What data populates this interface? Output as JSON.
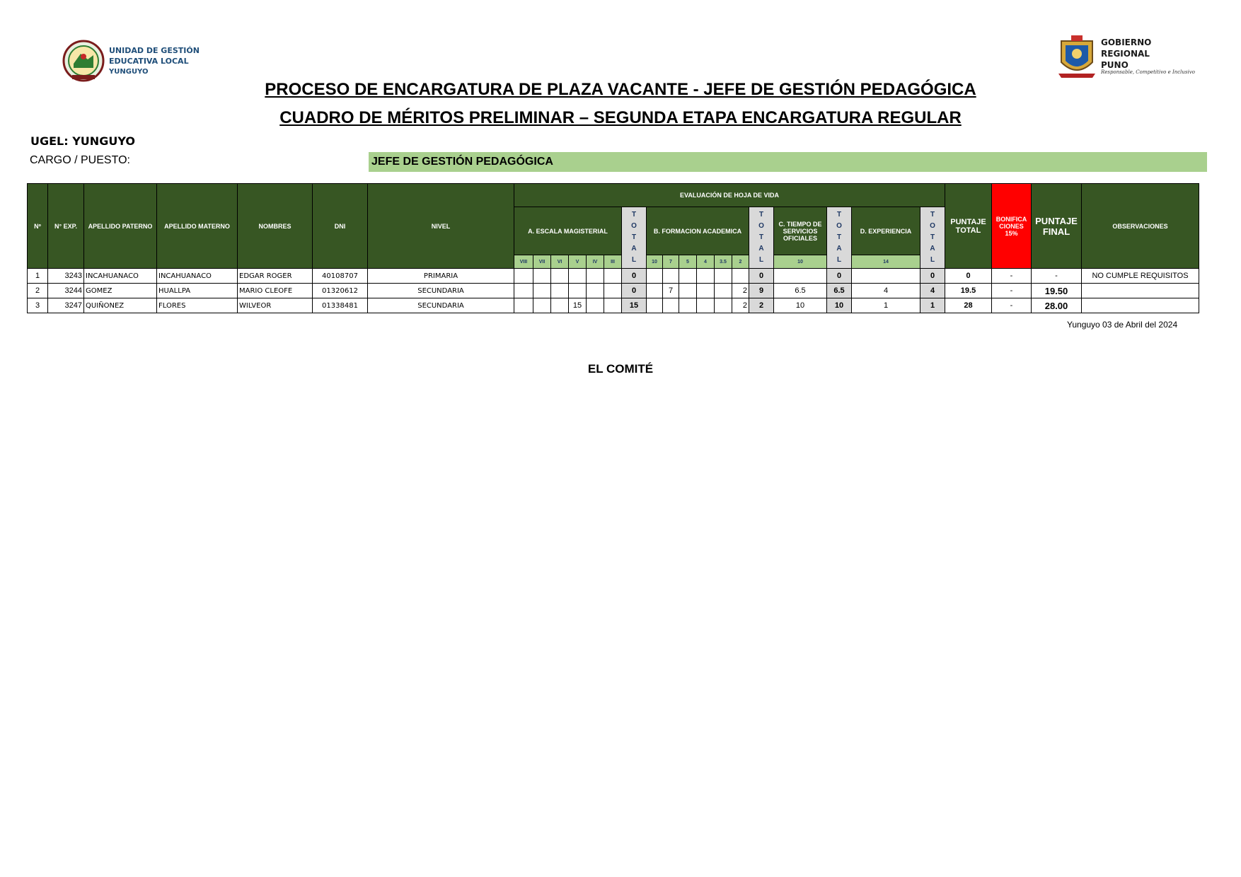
{
  "logos": {
    "left_text": [
      "UNIDAD DE GESTIÓN",
      "EDUCATIVA LOCAL",
      "YUNGUYO"
    ],
    "right_text": [
      "GOBIERNO",
      "REGIONAL",
      "PUNO"
    ],
    "right_slogan": "Responsable, Competitivo e Inclusivo"
  },
  "title_line1": "PROCESO DE ENCARGATURA  DE PLAZA VACANTE - JEFE DE GESTIÓN PEDAGÓGICA",
  "title_line2": "CUADRO DE MÉRITOS PRELIMINAR  – SEGUNDA ETAPA ENCARGATURA REGULAR",
  "ugel_label": "UGEL: YUNGUYO",
  "cargo_label": "CARGO / PUESTO:",
  "cargo_value": "JEFE DE GESTIÓN PEDAGÓGICA",
  "table": {
    "headers": {
      "num": "Nº",
      "exp": "N° EXP.",
      "apellido_paterno": "APELLIDO PATERNO",
      "apellido_materno": "APELLIDO MATERNO",
      "nombres": "NOMBRES",
      "dni": "DNI",
      "nivel": "NIVEL",
      "evaluacion": "EVALUACIÓN DE HOJA DE VIDA",
      "escala": "A. ESCALA MAGISTERIAL",
      "formacion": "B. FORMACION ACADEMICA",
      "tiempo": "C. TIEMPO DE SERVICIOS OFICIALES",
      "experiencia": "D. EXPERIENCIA",
      "total_vertical": "TOTAL",
      "puntaje_total": "PUNTAJE TOTAL",
      "bonificaciones": "BONIFICA CIONES 15%",
      "puntaje_final": "PUNTAJE FINAL",
      "observaciones": "OBSERVACIONES"
    },
    "escala_subs": [
      "VIII",
      "VII",
      "VI",
      "V",
      "IV",
      "III"
    ],
    "formacion_subs": [
      "10",
      "7",
      "5",
      "4",
      "3.5",
      "2"
    ],
    "tiempo_sub": "10",
    "experiencia_sub": "14",
    "rows": [
      {
        "num": "1",
        "exp": "3243",
        "apellido_paterno": "INCAHUANACO",
        "apellido_materno": "INCAHUANACO",
        "nombres": "EDGAR ROGER",
        "dni": "40108707",
        "nivel": "PRIMARIA",
        "escala": [
          "",
          "",
          "",
          "",
          "",
          ""
        ],
        "total_a": "0",
        "formacion": [
          "",
          "",
          "",
          "",
          "",
          ""
        ],
        "total_b": "0",
        "tiempo": "",
        "total_c": "0",
        "experiencia": "",
        "total_d": "0",
        "puntaje_total": "0",
        "bonificacion": "-",
        "puntaje_final": "-",
        "observaciones": "NO CUMPLE REQUISITOS"
      },
      {
        "num": "2",
        "exp": "3244",
        "apellido_paterno": "GOMEZ",
        "apellido_materno": "HUALLPA",
        "nombres": "MARIO CLEOFE",
        "dni": "01320612",
        "nivel": "SECUNDARIA",
        "escala": [
          "",
          "",
          "",
          "",
          "",
          ""
        ],
        "total_a": "0",
        "formacion": [
          "",
          "7",
          "",
          "",
          "",
          "2"
        ],
        "total_b": "9",
        "tiempo": "6.5",
        "total_c": "6.5",
        "experiencia": "4",
        "total_d": "4",
        "puntaje_total": "19.5",
        "bonificacion": "-",
        "puntaje_final": "19.50",
        "observaciones": ""
      },
      {
        "num": "3",
        "exp": "3247",
        "apellido_paterno": "QUIÑONEZ",
        "apellido_materno": "FLORES",
        "nombres": "WILVEOR",
        "dni": "01338481",
        "nivel": "SECUNDARIA",
        "escala": [
          "",
          "",
          "",
          "15",
          "",
          ""
        ],
        "total_a": "15",
        "formacion": [
          "",
          "",
          "",
          "",
          "",
          "2"
        ],
        "total_b": "2",
        "tiempo": "10",
        "total_c": "10",
        "experiencia": "1",
        "total_d": "1",
        "puntaje_total": "28",
        "bonificacion": "-",
        "puntaje_final": "28.00",
        "observaciones": ""
      }
    ]
  },
  "date_line": "Yunguyo 03 de Abril del 2024",
  "committee": "EL COMITÉ",
  "colors": {
    "header_green": "#375623",
    "light_green": "#a9d08e",
    "bonus_red": "#ff0000",
    "total_gray": "#d9d9d9",
    "vertical_text_blue": "#1f3864"
  }
}
